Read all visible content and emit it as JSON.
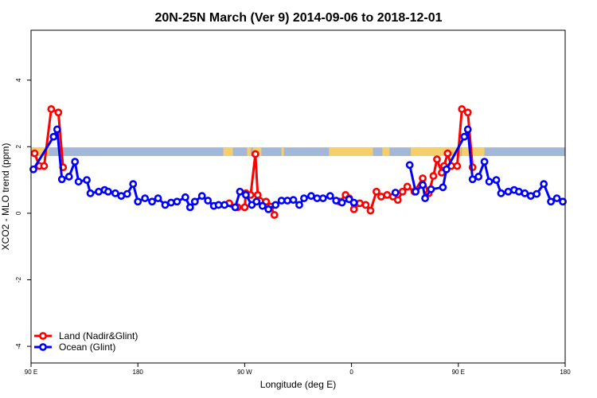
{
  "chart_data": {
    "type": "line",
    "title": "20N-25N March (Ver 9)   2014-09-06 to 2018-12-01",
    "xlabel": "Longitude (deg E)",
    "ylabel": "XCO2 - MLO trend (ppm)",
    "xlim": [
      90,
      540
    ],
    "ylim": [
      -4.5,
      5.5
    ],
    "xticks": [
      {
        "value": 90,
        "label": "90 E"
      },
      {
        "value": 180,
        "label": "180"
      },
      {
        "value": 270,
        "label": "90 W"
      },
      {
        "value": 360,
        "label": "0"
      },
      {
        "value": 450,
        "label": "90 E"
      },
      {
        "value": 540,
        "label": "180"
      }
    ],
    "yticks": [
      {
        "value": -4,
        "label": "-4"
      },
      {
        "value": -2,
        "label": "-2"
      },
      {
        "value": 0,
        "label": "0"
      },
      {
        "value": 2,
        "label": "2"
      },
      {
        "value": 4,
        "label": "4"
      }
    ],
    "grid": false,
    "legend_position": "bottom-left",
    "colors": {
      "land": "#ff0000",
      "ocean": "#0000ff",
      "map_land": "#f5cf6b",
      "map_ocean": "#a3b8d8"
    },
    "land_mask": {
      "y_range": [
        1.72,
        1.98
      ],
      "land_segments": [
        [
          90,
          105
        ],
        [
          252,
          260
        ],
        [
          272,
          275
        ],
        [
          277,
          284
        ],
        [
          301,
          303
        ],
        [
          341,
          378
        ],
        [
          386,
          392
        ],
        [
          410,
          452
        ],
        [
          453,
          472
        ]
      ]
    },
    "series": [
      {
        "name": "Land (Nadir&Glint)",
        "color": "#ff0000",
        "segments": [
          [
            [
              93,
              1.8
            ],
            [
              97,
              1.42
            ],
            [
              101,
              1.42
            ],
            [
              107,
              3.13
            ],
            [
              113,
              3.03
            ],
            [
              117,
              1.38
            ]
          ],
          [
            [
              257,
              0.3
            ],
            [
              264,
              0.18
            ],
            [
              270,
              0.18
            ],
            [
              271,
              0.6
            ],
            [
              275,
              0.55
            ],
            [
              279,
              1.78
            ],
            [
              281,
              0.55
            ],
            [
              283,
              0.37
            ],
            [
              288,
              0.35
            ],
            [
              292,
              0.2
            ],
            [
              295,
              -0.05
            ]
          ],
          [
            [
              350,
              0.35
            ],
            [
              355,
              0.55
            ],
            [
              358,
              0.45
            ],
            [
              362,
              0.12
            ],
            [
              367,
              0.3
            ],
            [
              372,
              0.25
            ],
            [
              376,
              0.08
            ],
            [
              381,
              0.65
            ],
            [
              385,
              0.5
            ],
            [
              390,
              0.55
            ],
            [
              395,
              0.5
            ],
            [
              399,
              0.4
            ],
            [
              403,
              0.65
            ],
            [
              407,
              0.8
            ],
            [
              413,
              0.65
            ],
            [
              420,
              1.05
            ],
            [
              425,
              0.6
            ],
            [
              429,
              1.12
            ],
            [
              432,
              1.62
            ],
            [
              436,
              1.22
            ],
            [
              438,
              1.42
            ],
            [
              441,
              1.8
            ],
            [
              444,
              1.42
            ],
            [
              449,
              1.42
            ],
            [
              453,
              3.13
            ],
            [
              458,
              3.03
            ],
            [
              462,
              1.38
            ]
          ]
        ]
      },
      {
        "name": "Ocean (Glint)",
        "color": "#0000ff",
        "segments": [
          [
            [
              92,
              1.32
            ],
            [
              109,
              2.3
            ],
            [
              112,
              2.52
            ],
            [
              116,
              1.02
            ],
            [
              122,
              1.1
            ],
            [
              127,
              1.55
            ],
            [
              130,
              0.95
            ],
            [
              137,
              1.0
            ],
            [
              140,
              0.6
            ],
            [
              147,
              0.65
            ],
            [
              152,
              0.7
            ],
            [
              155,
              0.65
            ],
            [
              161,
              0.6
            ],
            [
              166,
              0.52
            ],
            [
              171,
              0.58
            ],
            [
              176,
              0.88
            ],
            [
              180,
              0.35
            ],
            [
              186,
              0.45
            ],
            [
              192,
              0.35
            ],
            [
              197,
              0.45
            ],
            [
              203,
              0.25
            ],
            [
              208,
              0.32
            ],
            [
              213,
              0.35
            ],
            [
              220,
              0.48
            ],
            [
              224,
              0.18
            ],
            [
              228,
              0.35
            ],
            [
              234,
              0.52
            ],
            [
              239,
              0.38
            ],
            [
              244,
              0.22
            ],
            [
              248,
              0.25
            ],
            [
              253,
              0.25
            ],
            [
              262,
              0.18
            ],
            [
              266,
              0.65
            ],
            [
              271,
              0.55
            ],
            [
              276,
              0.25
            ],
            [
              280,
              0.35
            ],
            [
              285,
              0.22
            ],
            [
              290,
              0.12
            ],
            [
              296,
              0.25
            ],
            [
              301,
              0.38
            ],
            [
              306,
              0.38
            ],
            [
              311,
              0.4
            ],
            [
              316,
              0.25
            ],
            [
              320,
              0.45
            ],
            [
              326,
              0.52
            ],
            [
              331,
              0.45
            ],
            [
              336,
              0.45
            ],
            [
              342,
              0.52
            ],
            [
              347,
              0.38
            ],
            [
              352,
              0.32
            ],
            [
              358,
              0.42
            ],
            [
              362,
              0.32
            ]
          ],
          [
            [
              397,
              0.62
            ]
          ],
          [
            [
              409,
              1.45
            ],
            [
              414,
              0.65
            ],
            [
              420,
              0.85
            ],
            [
              422,
              0.45
            ],
            [
              427,
              0.72
            ],
            [
              437,
              0.78
            ],
            [
              440,
              1.32
            ],
            [
              455,
              2.3
            ],
            [
              458,
              2.52
            ],
            [
              462,
              1.02
            ],
            [
              467,
              1.1
            ],
            [
              472,
              1.55
            ],
            [
              476,
              0.95
            ],
            [
              482,
              1.0
            ],
            [
              486,
              0.6
            ],
            [
              492,
              0.65
            ],
            [
              497,
              0.7
            ],
            [
              501,
              0.65
            ],
            [
              506,
              0.6
            ],
            [
              511,
              0.52
            ],
            [
              516,
              0.58
            ],
            [
              522,
              0.88
            ],
            [
              528,
              0.35
            ],
            [
              533,
              0.45
            ],
            [
              538,
              0.35
            ]
          ]
        ]
      }
    ]
  }
}
